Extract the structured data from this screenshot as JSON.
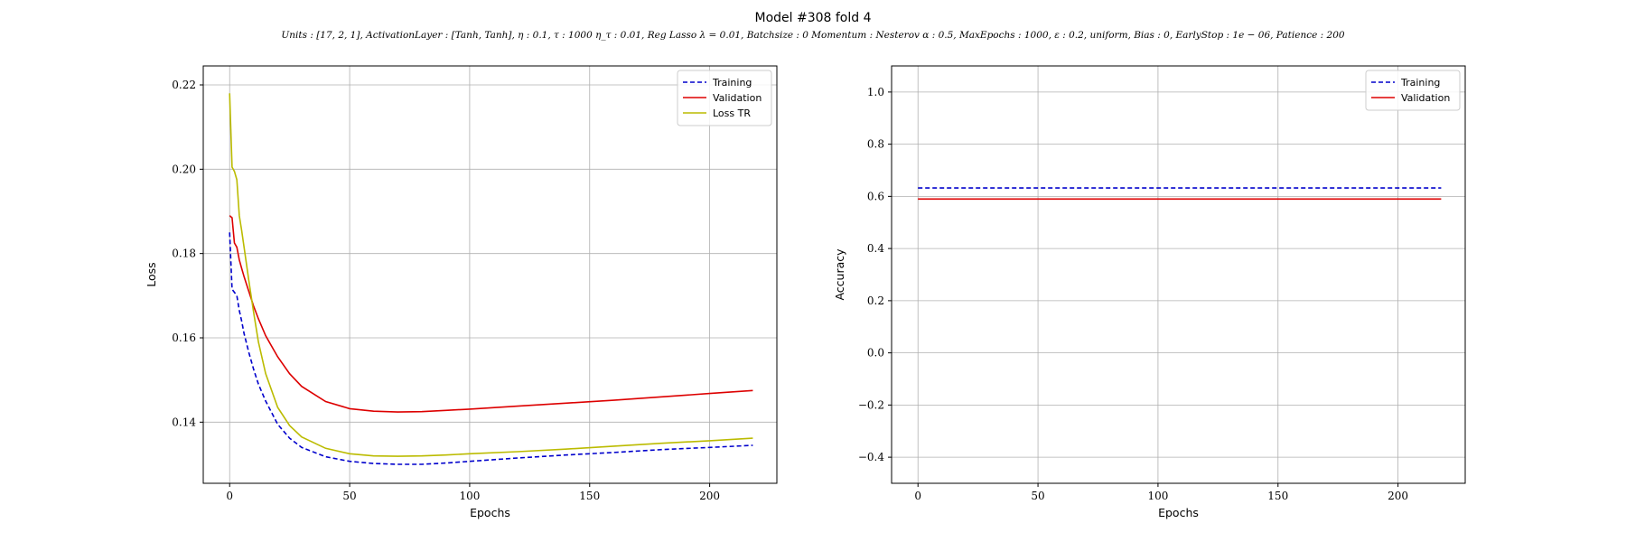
{
  "figure": {
    "title": "Model #308 fold 4",
    "subtitle": "Units : [17, 2, 1], ActivationLayer : [Tanh, Tanh], η : 0.1, τ : 1000 η_τ : 0.01, Reg Lasso λ = 0.01, Batchsize : 0 Momentum : Nesterov α : 0.5, MaxEpochs : 1000, ε : 0.2, uniform, Bias : 0, EarlyStop : 1e − 06, Patience : 200"
  },
  "chart_data": [
    {
      "type": "line",
      "xlabel": "Epochs",
      "ylabel": "Loss",
      "xlim": [
        -11,
        228
      ],
      "ylim": [
        0.1255,
        0.2245
      ],
      "xticks": [
        0,
        50,
        100,
        150,
        200
      ],
      "yticks": [
        0.14,
        0.16,
        0.18,
        0.2,
        0.22
      ],
      "ytick_labels": [
        "0.14",
        "0.16",
        "0.18",
        "0.20",
        "0.22"
      ],
      "grid": true,
      "legend": "top-right",
      "series": [
        {
          "name": "Training",
          "color": "#0000cc",
          "style": "dashed",
          "x": [
            0,
            1,
            2,
            3,
            4,
            5,
            6,
            8,
            10,
            12,
            15,
            20,
            25,
            30,
            40,
            50,
            60,
            70,
            80,
            90,
            100,
            120,
            140,
            160,
            180,
            200,
            218
          ],
          "y": [
            0.185,
            0.1715,
            0.1708,
            0.17,
            0.1665,
            0.164,
            0.161,
            0.1565,
            0.1525,
            0.149,
            0.145,
            0.1395,
            0.1362,
            0.134,
            0.1318,
            0.1307,
            0.1302,
            0.13,
            0.13,
            0.1303,
            0.1307,
            0.1315,
            0.1322,
            0.1328,
            0.1335,
            0.134,
            0.1345
          ]
        },
        {
          "name": "Validation",
          "color": "#dd0000",
          "style": "solid",
          "x": [
            0,
            1,
            2,
            3,
            4,
            5,
            6,
            8,
            10,
            12,
            15,
            20,
            25,
            30,
            40,
            50,
            60,
            70,
            80,
            90,
            100,
            120,
            140,
            160,
            180,
            200,
            218
          ],
          "y": [
            0.189,
            0.1885,
            0.1825,
            0.1815,
            0.1785,
            0.1765,
            0.1745,
            0.171,
            0.1675,
            0.1645,
            0.1605,
            0.1555,
            0.1515,
            0.1485,
            0.1449,
            0.1432,
            0.1426,
            0.1424,
            0.1425,
            0.1428,
            0.1431,
            0.1438,
            0.1445,
            0.1452,
            0.146,
            0.1468,
            0.1475
          ]
        },
        {
          "name": "Loss TR",
          "color": "#bbbb00",
          "style": "solid",
          "x": [
            0,
            1,
            2,
            3,
            4,
            5,
            6,
            8,
            10,
            12,
            15,
            20,
            25,
            30,
            40,
            50,
            60,
            70,
            80,
            90,
            100,
            120,
            140,
            160,
            180,
            200,
            218
          ],
          "y": [
            0.218,
            0.2005,
            0.1995,
            0.1975,
            0.189,
            0.1855,
            0.1815,
            0.1735,
            0.166,
            0.159,
            0.1515,
            0.1435,
            0.1392,
            0.1365,
            0.1338,
            0.1325,
            0.132,
            0.1319,
            0.132,
            0.1322,
            0.1325,
            0.133,
            0.1336,
            0.1343,
            0.135,
            0.1356,
            0.1362
          ]
        }
      ]
    },
    {
      "type": "line",
      "xlabel": "Epochs",
      "ylabel": "Accuracy",
      "xlim": [
        -11,
        228
      ],
      "ylim": [
        -0.5,
        1.1
      ],
      "xticks": [
        0,
        50,
        100,
        150,
        200
      ],
      "yticks": [
        -0.4,
        -0.2,
        0.0,
        0.2,
        0.4,
        0.6,
        0.8,
        1.0
      ],
      "ytick_labels": [
        "−0.4",
        "−0.2",
        "0.0",
        "0.2",
        "0.4",
        "0.6",
        "0.8",
        "1.0"
      ],
      "grid": true,
      "legend": "top-right",
      "series": [
        {
          "name": "Training",
          "color": "#0000cc",
          "style": "dashed",
          "x": [
            0,
            218
          ],
          "y": [
            0.632,
            0.632
          ]
        },
        {
          "name": "Validation",
          "color": "#dd0000",
          "style": "solid",
          "x": [
            0,
            218
          ],
          "y": [
            0.59,
            0.59
          ]
        }
      ]
    }
  ]
}
